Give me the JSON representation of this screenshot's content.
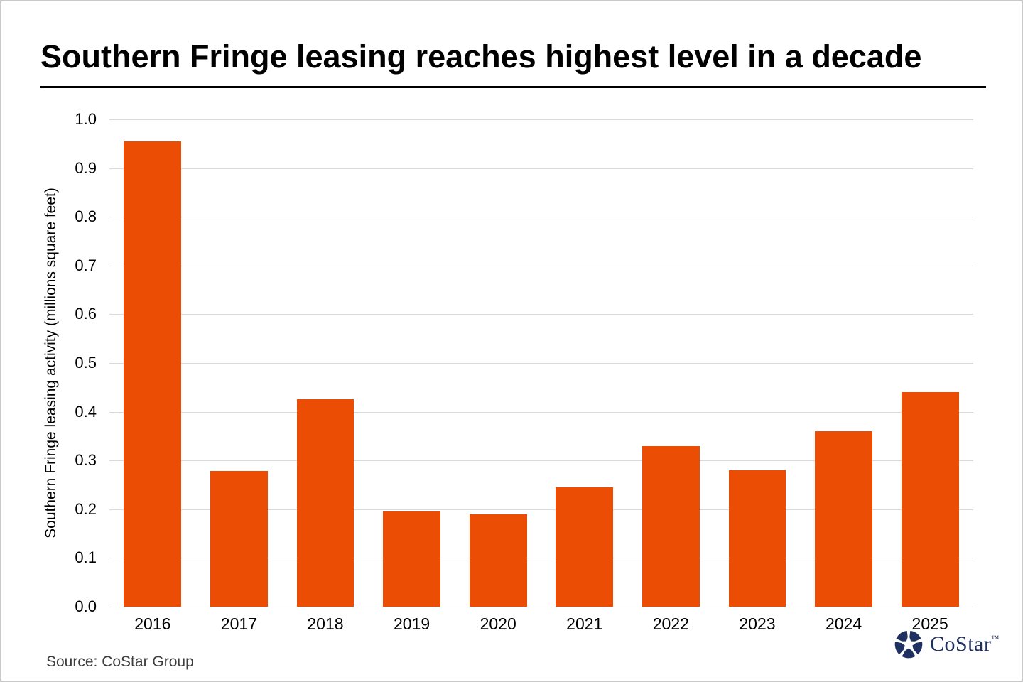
{
  "title": "Southern Fringe leasing reaches highest level in a decade",
  "source": "Source: CoStar Group",
  "logo": {
    "text": "CoStar",
    "tm": "™",
    "color": "#1f3160"
  },
  "colors": {
    "bar": "#ec4d05",
    "gridline": "#d9d9d9",
    "title": "#000000",
    "source": "#3d3d3d"
  },
  "chart_data": {
    "type": "bar",
    "categories": [
      "2016",
      "2017",
      "2018",
      "2019",
      "2020",
      "2021",
      "2022",
      "2023",
      "2024",
      "2025"
    ],
    "values": [
      0.955,
      0.278,
      0.425,
      0.195,
      0.19,
      0.245,
      0.33,
      0.28,
      0.36,
      0.44
    ],
    "title": "Southern Fringe leasing reaches highest level in a decade",
    "xlabel": "",
    "ylabel": "Southern Fringe leasing activity (millions square feet)",
    "ylim": [
      0.0,
      1.0
    ],
    "yticks": [
      0.0,
      0.1,
      0.2,
      0.3,
      0.4,
      0.5,
      0.6,
      0.7,
      0.8,
      0.9,
      1.0
    ],
    "ytick_format_decimals": 1,
    "grid": true,
    "legend_position": "none",
    "bar_color": "#ec4d05"
  }
}
